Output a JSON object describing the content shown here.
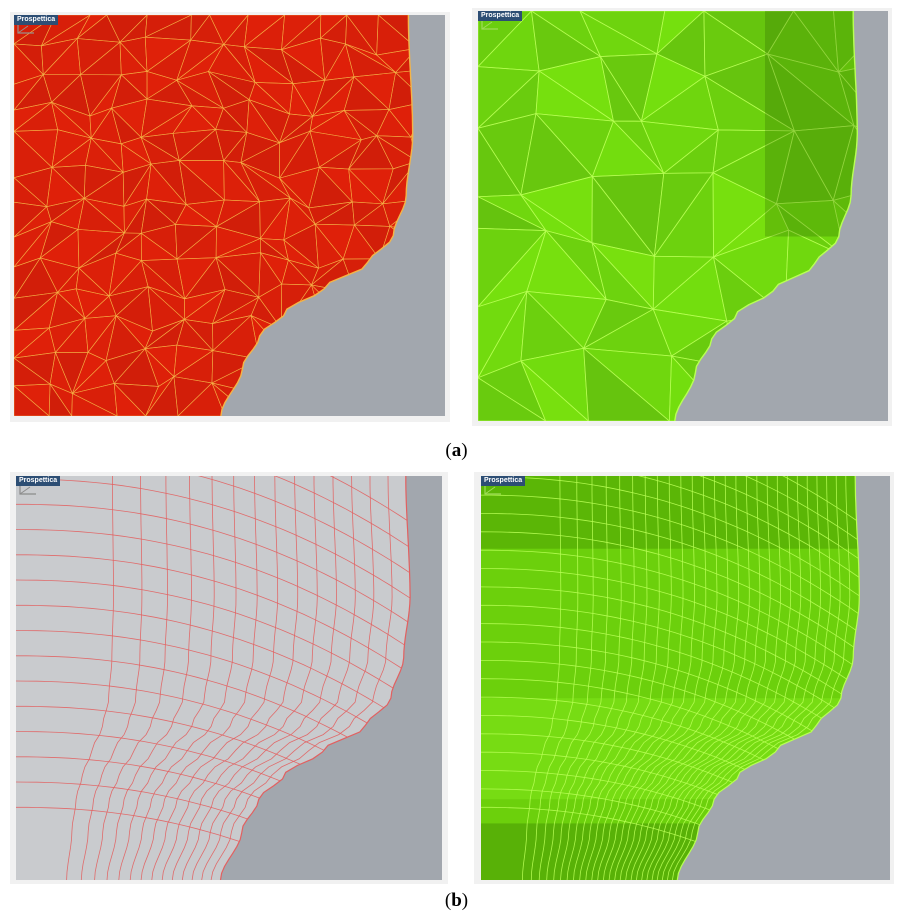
{
  "figure": {
    "row_a": {
      "label": "a",
      "panels": [
        {
          "viewport_title": "Prospettica",
          "mode": "triangle-mesh-wire",
          "fill": "#d41d08",
          "wire": "#f4b447",
          "background": "#a2a7ae"
        },
        {
          "viewport_title": "Prospettica",
          "mode": "triangle-mesh-shaded",
          "fill": "#6cd00c",
          "wire": "#b8ff55",
          "background": "#a2a7ae"
        }
      ]
    },
    "row_b": {
      "label": "b",
      "panels": [
        {
          "viewport_title": "Prospettica",
          "mode": "quad-mesh-wire",
          "fill": "#c9cbce",
          "wire": "#e26060",
          "background": "#a2a7ae"
        },
        {
          "viewport_title": "Prospettica",
          "mode": "quad-mesh-shaded",
          "fill": "#6cd00c",
          "wire": "#b8ff55",
          "background": "#a2a7ae"
        }
      ]
    }
  }
}
